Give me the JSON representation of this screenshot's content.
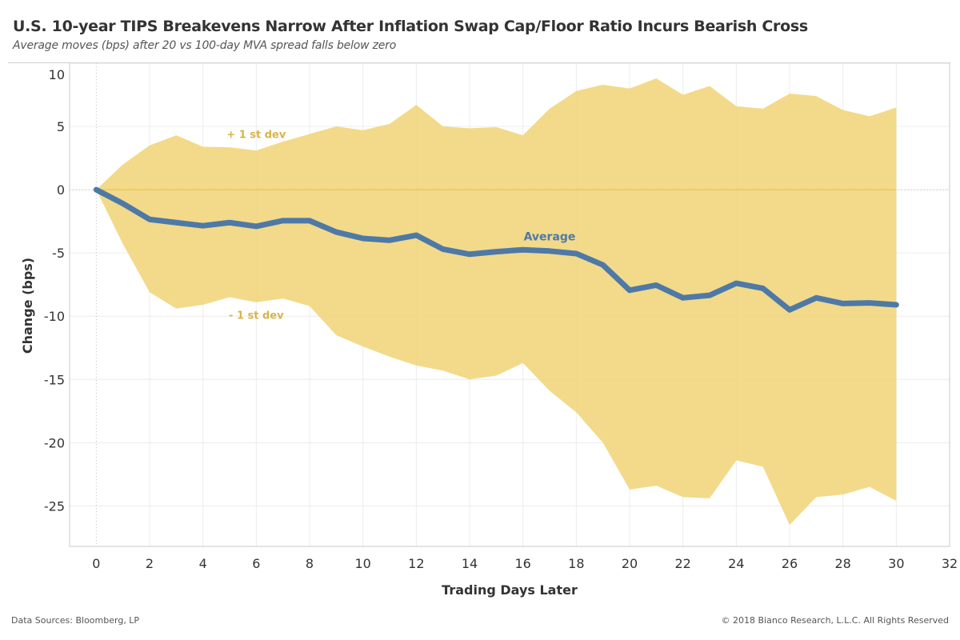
{
  "header": {
    "title": "U.S. 10-year TIPS Breakevens Narrow After Inflation Swap Cap/Floor Ratio Incurs Bearish Cross",
    "subtitle": "Average moves (bps) after 20 vs 100-day MVA spread falls below zero"
  },
  "footer": {
    "source": "Data Sources: Bloomberg, LP",
    "copyright": "© 2018 Bianco Research, L.L.C. All Rights Reserved"
  },
  "chart_data": {
    "type": "area",
    "title": "U.S. 10-year TIPS Breakevens Narrow After Inflation Swap Cap/Floor Ratio Incurs Bearish Cross",
    "subtitle": "Average moves (bps) after 20 vs 100-day MVA spread falls below zero",
    "xlabel": "Trading Days Later",
    "ylabel": "Change (bps)",
    "xlim": [
      -1,
      32
    ],
    "ylim": [
      -28.2,
      10
    ],
    "x_ticks": [
      0,
      2,
      4,
      6,
      8,
      10,
      12,
      14,
      16,
      18,
      20,
      22,
      24,
      26,
      28,
      30,
      32
    ],
    "y_ticks": [
      10,
      5,
      0,
      -5,
      -10,
      -15,
      -20,
      -25
    ],
    "grid": true,
    "legend": "none",
    "colors": {
      "band": "#f0d57a",
      "average": "#4e79a7",
      "band_label": "#d9b44a",
      "zero_line": "#e8c040"
    },
    "x": [
      0,
      1,
      2,
      3,
      4,
      5,
      6,
      7,
      8,
      9,
      10,
      11,
      12,
      13,
      14,
      15,
      16,
      17,
      18,
      19,
      20,
      21,
      22,
      23,
      24,
      25,
      26,
      27,
      28,
      29,
      30
    ],
    "series": [
      {
        "name": "Average",
        "type": "line",
        "values": [
          0,
          -1.1,
          -2.35,
          -2.6,
          -2.85,
          -2.6,
          -2.9,
          -2.45,
          -2.45,
          -3.35,
          -3.85,
          -4.0,
          -3.6,
          -4.7,
          -5.1,
          -4.9,
          -4.75,
          -4.85,
          -5.05,
          -5.95,
          -7.95,
          -7.55,
          -8.55,
          -8.35,
          -7.4,
          -7.8,
          -9.5,
          -8.55,
          -9.0,
          -8.95,
          -9.1
        ]
      },
      {
        "name": "+ 1 st dev",
        "type": "band-upper",
        "values": [
          0,
          2.0,
          3.5,
          4.3,
          3.4,
          3.35,
          3.1,
          3.8,
          4.4,
          5.0,
          4.7,
          5.2,
          6.7,
          5.0,
          4.85,
          4.95,
          4.3,
          6.4,
          7.8,
          8.3,
          8.0,
          8.8,
          7.5,
          8.2,
          6.6,
          6.4,
          7.6,
          7.4,
          6.3,
          5.8,
          6.5
        ]
      },
      {
        "name": "- 1 st dev",
        "type": "band-lower",
        "values": [
          0,
          -4.3,
          -8.1,
          -9.4,
          -9.1,
          -8.5,
          -8.9,
          -8.6,
          -9.2,
          -11.5,
          -12.4,
          -13.2,
          -13.9,
          -14.3,
          -15.0,
          -14.7,
          -13.7,
          -15.9,
          -17.6,
          -20.0,
          -23.7,
          -23.4,
          -24.3,
          -24.4,
          -21.4,
          -21.9,
          -26.5,
          -24.3,
          -24.1,
          -23.5,
          -24.6
        ]
      }
    ],
    "annotations": [
      {
        "text": "+ 1 st dev",
        "x": 6,
        "y": 4.4
      },
      {
        "text": "- 1 st dev",
        "x": 6,
        "y": -9.9
      },
      {
        "text": "Average",
        "x": 17,
        "y": -3.7
      }
    ]
  }
}
